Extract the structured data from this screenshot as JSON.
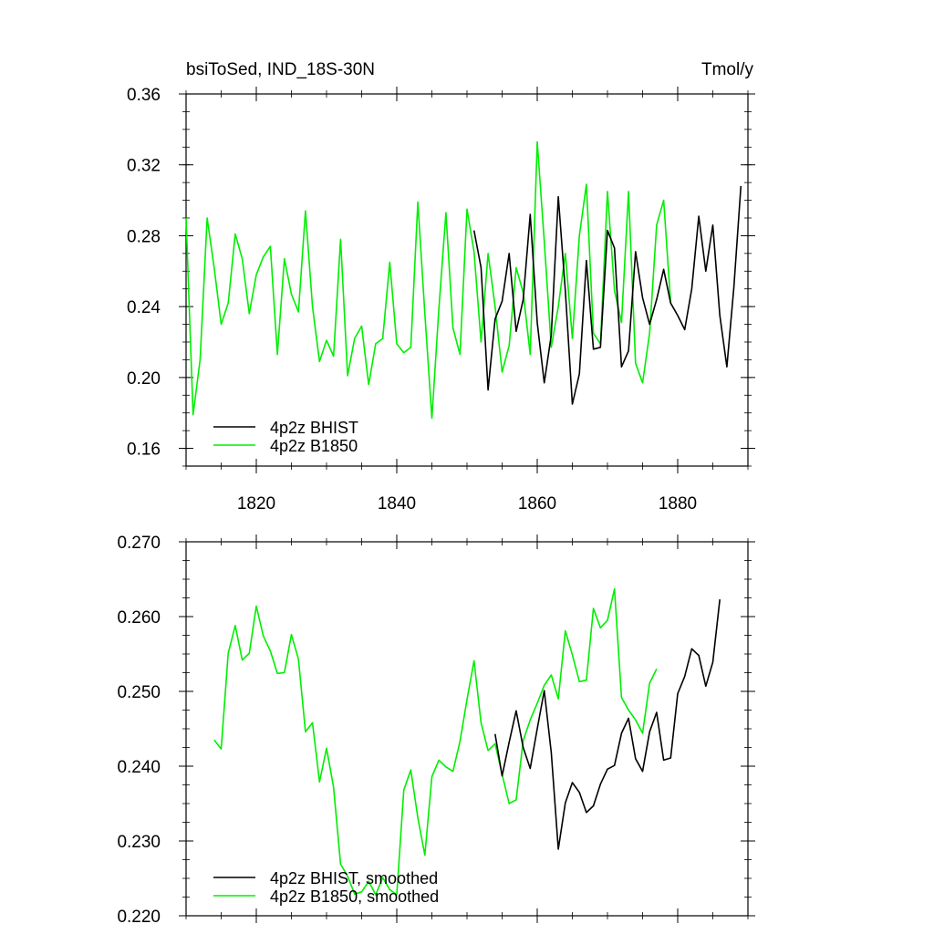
{
  "colors": {
    "bhist": "#000000",
    "b1850": "#00ee00",
    "axis": "#000000",
    "background": "#ffffff"
  },
  "chart_data": [
    {
      "type": "line",
      "title": "bsiToSed, IND_18S-30N",
      "units": "Tmol/y",
      "xlabel": "",
      "ylabel": "",
      "xlim": [
        1810,
        1890
      ],
      "ylim": [
        0.15,
        0.36
      ],
      "yticks": [
        "0.16",
        "0.20",
        "0.24",
        "0.28",
        "0.32",
        "0.36"
      ],
      "xticks": [
        "1820",
        "1840",
        "1860",
        "1880"
      ],
      "legend_position": "bottom-left",
      "grid": false,
      "series": [
        {
          "name": "4p2z BHIST",
          "color": "#000000",
          "x": [
            1851,
            1852,
            1853,
            1854,
            1855,
            1856,
            1857,
            1858,
            1859,
            1860,
            1861,
            1862,
            1863,
            1864,
            1865,
            1866,
            1867,
            1868,
            1869,
            1870,
            1871,
            1872,
            1873,
            1874,
            1875,
            1876,
            1877,
            1878,
            1879,
            1880,
            1881,
            1882,
            1883,
            1884,
            1885,
            1886,
            1887,
            1888,
            1889
          ],
          "y": [
            0.283,
            0.262,
            0.193,
            0.233,
            0.243,
            0.27,
            0.226,
            0.244,
            0.292,
            0.231,
            0.197,
            0.224,
            0.302,
            0.249,
            0.185,
            0.202,
            0.266,
            0.216,
            0.217,
            0.283,
            0.273,
            0.206,
            0.215,
            0.271,
            0.245,
            0.23,
            0.244,
            0.261,
            0.242,
            0.235,
            0.227,
            0.25,
            0.291,
            0.26,
            0.286,
            0.235,
            0.206,
            0.251,
            0.308
          ]
        },
        {
          "name": "4p2z B1850",
          "color": "#00ee00",
          "x": [
            1810,
            1811,
            1812,
            1813,
            1814,
            1815,
            1816,
            1817,
            1818,
            1819,
            1820,
            1821,
            1822,
            1823,
            1824,
            1825,
            1826,
            1827,
            1828,
            1829,
            1830,
            1831,
            1832,
            1833,
            1834,
            1835,
            1836,
            1837,
            1838,
            1839,
            1840,
            1841,
            1842,
            1843,
            1844,
            1845,
            1846,
            1847,
            1848,
            1849,
            1850,
            1851,
            1852,
            1853,
            1854,
            1855,
            1856,
            1857,
            1858,
            1859,
            1860,
            1861,
            1862,
            1863,
            1864,
            1865,
            1866,
            1867,
            1868,
            1869,
            1870,
            1871,
            1872,
            1873,
            1874,
            1875,
            1876,
            1877,
            1878,
            1879
          ],
          "y": [
            0.29,
            0.179,
            0.21,
            0.29,
            0.262,
            0.23,
            0.242,
            0.281,
            0.267,
            0.236,
            0.258,
            0.268,
            0.274,
            0.213,
            0.267,
            0.247,
            0.237,
            0.294,
            0.24,
            0.209,
            0.221,
            0.212,
            0.278,
            0.201,
            0.222,
            0.229,
            0.196,
            0.219,
            0.222,
            0.265,
            0.219,
            0.214,
            0.217,
            0.299,
            0.236,
            0.177,
            0.239,
            0.293,
            0.228,
            0.213,
            0.295,
            0.271,
            0.22,
            0.27,
            0.24,
            0.203,
            0.218,
            0.262,
            0.248,
            0.213,
            0.333,
            0.277,
            0.217,
            0.24,
            0.27,
            0.222,
            0.28,
            0.309,
            0.225,
            0.219,
            0.305,
            0.249,
            0.231,
            0.305,
            0.208,
            0.197,
            0.225,
            0.286,
            0.3,
            0.242
          ]
        }
      ]
    },
    {
      "type": "line",
      "title": "",
      "xlabel": "",
      "ylabel": "",
      "xlim": [
        1810,
        1890
      ],
      "ylim": [
        0.22,
        0.27
      ],
      "yticks": [
        "0.220",
        "0.230",
        "0.240",
        "0.250",
        "0.260",
        "0.270"
      ],
      "xticks": [],
      "legend_position": "bottom-left",
      "grid": false,
      "series": [
        {
          "name": "4p2z BHIST, smoothed",
          "color": "#000000",
          "x": [
            1854,
            1855,
            1856,
            1857,
            1858,
            1859,
            1860,
            1861,
            1862,
            1863,
            1864,
            1865,
            1866,
            1867,
            1868,
            1869,
            1870,
            1871,
            1872,
            1873,
            1874,
            1875,
            1876,
            1877,
            1878,
            1879,
            1880,
            1881,
            1882,
            1883,
            1884,
            1885,
            1886
          ],
          "y": [
            0.2443,
            0.2387,
            0.2432,
            0.2474,
            0.2425,
            0.2397,
            0.245,
            0.2501,
            0.2418,
            0.2289,
            0.2351,
            0.2378,
            0.2365,
            0.2338,
            0.2347,
            0.2376,
            0.2396,
            0.2401,
            0.2444,
            0.2464,
            0.241,
            0.2393,
            0.2446,
            0.2472,
            0.2408,
            0.2411,
            0.2497,
            0.252,
            0.2557,
            0.2548,
            0.2507,
            0.2539,
            0.2623
          ]
        },
        {
          "name": "4p2z B1850, smoothed",
          "color": "#00ee00",
          "x": [
            1814,
            1815,
            1816,
            1817,
            1818,
            1819,
            1820,
            1821,
            1822,
            1823,
            1824,
            1825,
            1826,
            1827,
            1828,
            1829,
            1830,
            1831,
            1832,
            1833,
            1834,
            1835,
            1836,
            1837,
            1838,
            1839,
            1840,
            1841,
            1842,
            1843,
            1844,
            1845,
            1846,
            1847,
            1848,
            1849,
            1850,
            1851,
            1852,
            1853,
            1854,
            1855,
            1856,
            1857,
            1858,
            1859,
            1860,
            1861,
            1862,
            1863,
            1864,
            1865,
            1866,
            1867,
            1868,
            1869,
            1870,
            1871,
            1872,
            1873,
            1874,
            1875,
            1876,
            1877
          ],
          "y": [
            0.2435,
            0.2423,
            0.2551,
            0.2588,
            0.2542,
            0.2551,
            0.2614,
            0.2574,
            0.2554,
            0.2524,
            0.2525,
            0.2576,
            0.2543,
            0.2446,
            0.2458,
            0.2379,
            0.2424,
            0.2372,
            0.2269,
            0.2253,
            0.2229,
            0.2232,
            0.2246,
            0.2228,
            0.2251,
            0.2235,
            0.2228,
            0.2368,
            0.2395,
            0.2331,
            0.2281,
            0.2386,
            0.2408,
            0.2399,
            0.2393,
            0.2433,
            0.2489,
            0.2541,
            0.2458,
            0.2421,
            0.243,
            0.2389,
            0.235,
            0.2355,
            0.2434,
            0.2462,
            0.2484,
            0.2508,
            0.2522,
            0.249,
            0.2581,
            0.2549,
            0.2513,
            0.2515,
            0.2611,
            0.2585,
            0.2595,
            0.2637,
            0.2492,
            0.2475,
            0.2462,
            0.2444,
            0.2511,
            0.253
          ]
        }
      ]
    }
  ]
}
